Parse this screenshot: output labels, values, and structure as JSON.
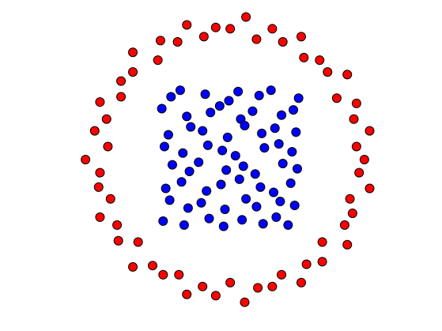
{
  "chart_data": {
    "type": "scatter",
    "xlim": [
      -1.75,
      1.61
    ],
    "ylim": [
      -1.31,
      1.22
    ],
    "axes": false,
    "series": [
      {
        "color": "#ff0000",
        "x": [
          1.02,
          0.96,
          1.06,
          0.94,
          0.96,
          0.81,
          0.89,
          0.74,
          0.68,
          0.56,
          0.54,
          0.4,
          0.32,
          0.2,
          0.12,
          0,
          -0.11,
          -0.2,
          -0.33,
          -0.4,
          -0.53,
          -0.55,
          -0.74,
          -0.74,
          -0.83,
          -0.83,
          -0.99,
          -0.94,
          -1.03,
          -0.93,
          -1.1,
          -0.99,
          -1.0,
          -0.91,
          -0.99,
          -0.86,
          -0.85,
          -0.7,
          -0.74,
          -0.59,
          -0.51,
          -0.39,
          -0.33,
          -0.21,
          -0.11,
          0,
          0.11,
          0.21,
          0.32,
          0.39,
          0.54,
          0.58,
          0.7,
          0.7,
          0.89,
          0.87,
          0.93,
          0.91,
          1.06,
          0.98
        ],
        "y": [
          0,
          0.1,
          0.22,
          0.31,
          0.43,
          0.47,
          0.65,
          0.67,
          0.76,
          0.78,
          0.94,
          0.9,
          1.0,
          0.92,
          1.09,
          1.0,
          1.01,
          0.94,
          1.03,
          0.9,
          0.91,
          0.76,
          0.82,
          0.67,
          0.6,
          0.48,
          0.44,
          0.31,
          0.22,
          0.1,
          0,
          -0.1,
          -0.21,
          -0.3,
          -0.44,
          -0.5,
          -0.62,
          -0.63,
          -0.82,
          -0.81,
          -0.88,
          -0.88,
          -1.03,
          -0.97,
          -1.04,
          -0.94,
          -1.09,
          -0.98,
          -0.97,
          -0.88,
          -0.94,
          -0.8,
          -0.78,
          -0.63,
          -0.65,
          -0.5,
          -0.41,
          -0.3,
          -0.22,
          -0.1
        ]
      },
      {
        "color": "#0000ff",
        "x": [
          -0.45,
          -0.38,
          -0.19,
          -0.01,
          0.06,
          0.22,
          0.31,
          0.52,
          -0.52,
          -0.33,
          -0.15,
          -0.08,
          0.08,
          0.17,
          0.39,
          0.48,
          -0.47,
          -0.3,
          -0.21,
          -0.02,
          0.11,
          0.24,
          0.34,
          0.5,
          -0.5,
          -0.36,
          -0.17,
          -0.06,
          0.04,
          0.26,
          0.37,
          0.47,
          -0.44,
          -0.31,
          -0.24,
          -0.03,
          0.1,
          0.19,
          0.4,
          0.51,
          -0.49,
          -0.37,
          -0.18,
          -0.07,
          0.07,
          0.23,
          0.33,
          0.46,
          -0.46,
          -0.32,
          -0.22,
          -0.04,
          0.12,
          0.2,
          0.38,
          0.49,
          -0.51,
          -0.35,
          -0.16,
          -0.05,
          0.09,
          0.25,
          0.35,
          0.44
        ],
        "y": [
          0.48,
          0.53,
          0.5,
          0.45,
          0.52,
          0.49,
          0.53,
          0.47,
          0.39,
          0.33,
          0.36,
          0.41,
          0.31,
          0.37,
          0.34,
          0.38,
          0.19,
          0.25,
          0.22,
          0.17,
          0.26,
          0.2,
          0.24,
          0.21,
          0.1,
          0.05,
          0.11,
          0.07,
          0.03,
          0.09,
          0.12,
          0.06,
          -0.04,
          -0.09,
          -0.02,
          -0.08,
          -0.05,
          -0.11,
          -0.03,
          -0.07,
          -0.22,
          -0.17,
          -0.24,
          -0.19,
          -0.15,
          -0.21,
          -0.25,
          -0.18,
          -0.31,
          -0.37,
          -0.33,
          -0.38,
          -0.3,
          -0.36,
          -0.32,
          -0.35,
          -0.47,
          -0.5,
          -0.45,
          -0.51,
          -0.46,
          -0.49,
          -0.44,
          -0.5
        ]
      }
    ]
  }
}
